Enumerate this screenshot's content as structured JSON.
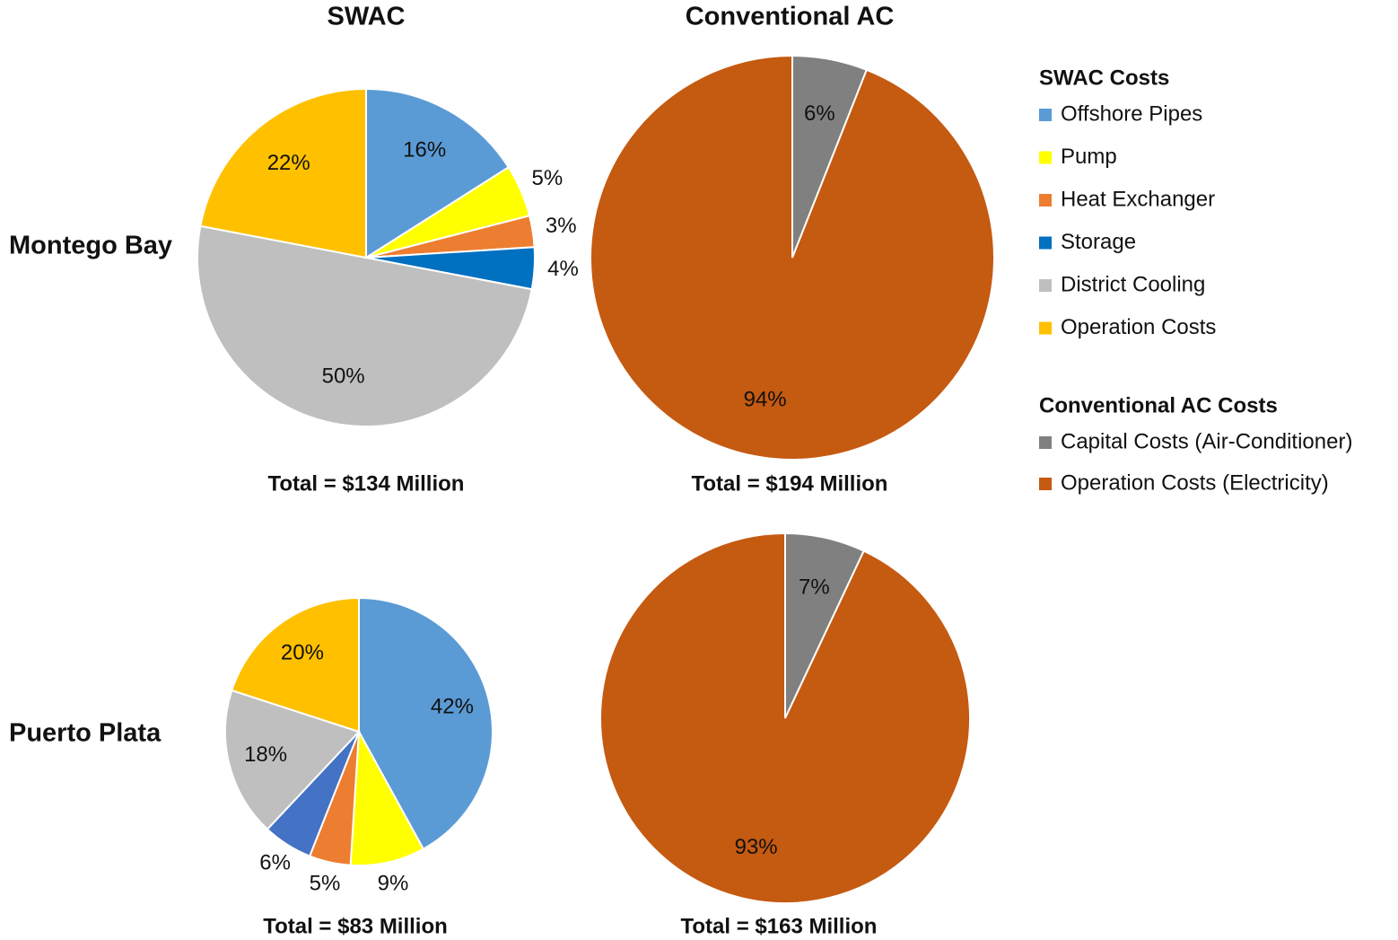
{
  "column_titles": [
    "SWAC",
    "Conventional AC"
  ],
  "row_labels": [
    "Montego Bay",
    "Puerto Plata"
  ],
  "chart_data": [
    {
      "type": "pie",
      "legend_title": "SWAC Costs",
      "total_label": "Total = $134 Million",
      "categories": [
        "Offshore Pipes",
        "Pump",
        "Heat Exchanger",
        "Storage",
        "District Cooling",
        "Operation Costs"
      ],
      "values": [
        16,
        5,
        3,
        4,
        50,
        22
      ],
      "value_labels": [
        "16%",
        "5%",
        "3%",
        "4%",
        "50%",
        "22%"
      ],
      "colors": [
        "#5b9bd5",
        "#ffff00",
        "#ed7d31",
        "#0070c0",
        "#bfbfbf",
        "#ffc000"
      ]
    },
    {
      "type": "pie",
      "legend_title": "Conventional AC Costs",
      "total_label": "Total = $194 Million",
      "categories": [
        "Capital Costs (Air-Conditioner)",
        "Operation Costs (Electricity)"
      ],
      "values": [
        6,
        94
      ],
      "value_labels": [
        "6%",
        "94%"
      ],
      "colors": [
        "#808080",
        "#c55a11"
      ]
    },
    {
      "type": "pie",
      "total_label": "Total = $83 Million",
      "categories": [
        "Offshore Pipes",
        "Pump",
        "Heat Exchanger",
        "Storage",
        "District Cooling",
        "Operation Costs"
      ],
      "values": [
        42,
        9,
        5,
        6,
        18,
        20
      ],
      "value_labels": [
        "42%",
        "9%",
        "5%",
        "6%",
        "18%",
        "20%"
      ],
      "colors": [
        "#5b9bd5",
        "#ffff00",
        "#ed7d31",
        "#4472c4",
        "#bfbfbf",
        "#ffc000"
      ]
    },
    {
      "type": "pie",
      "total_label": "Total = $163 Million",
      "categories": [
        "Capital Costs (Air-Conditioner)",
        "Operation Costs (Electricity)"
      ],
      "values": [
        7,
        93
      ],
      "value_labels": [
        "7%",
        "93%"
      ],
      "colors": [
        "#808080",
        "#c55a11"
      ]
    }
  ]
}
